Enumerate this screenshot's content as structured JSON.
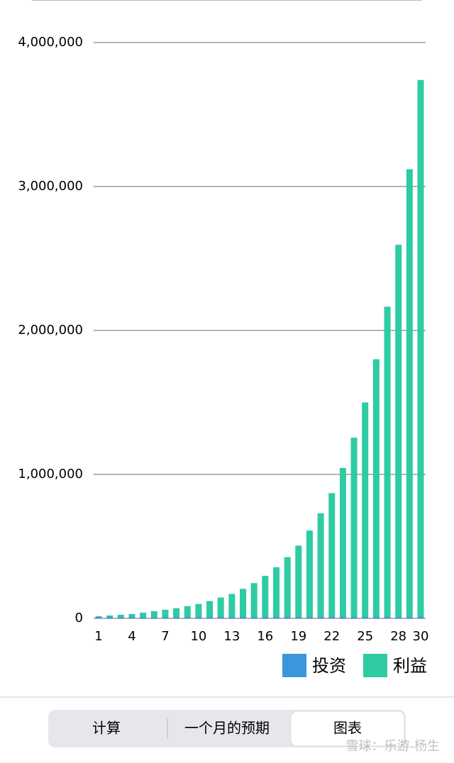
{
  "chart_data": {
    "type": "bar",
    "stacked": true,
    "categories": [
      "1",
      null,
      null,
      "4",
      null,
      null,
      "7",
      null,
      null,
      "10",
      null,
      null,
      "13",
      null,
      null,
      "16",
      null,
      null,
      "19",
      null,
      null,
      "22",
      null,
      null,
      "25",
      null,
      null,
      "28",
      null,
      "30"
    ],
    "series": [
      {
        "name": "投资",
        "color": "#3a97dc",
        "values": [
          10000,
          10000,
          10000,
          10000,
          10000,
          10000,
          10000,
          10000,
          10000,
          10000,
          10000,
          10000,
          10000,
          10000,
          10000,
          10000,
          10000,
          10000,
          10000,
          10000,
          10000,
          10000,
          10000,
          10000,
          10000,
          10000,
          10000,
          10000,
          10000,
          10000
        ]
      },
      {
        "name": "利益",
        "color": "#2ecba4",
        "values": [
          5000,
          10000,
          15000,
          20000,
          30000,
          40000,
          50000,
          60000,
          75000,
          90000,
          110000,
          135000,
          160000,
          195000,
          235000,
          285000,
          345000,
          415000,
          495000,
          600000,
          720000,
          860000,
          1035000,
          1245000,
          1490000,
          1790000,
          2155000,
          2585000,
          3110000,
          3730000
        ]
      }
    ],
    "ylim": [
      0,
      4000000
    ],
    "yticks": [
      0,
      {
        "value": 1000000,
        "label": "1,000,000"
      },
      {
        "value": 2000000,
        "label": "2,000,000"
      },
      {
        "value": 3000000,
        "label": "3,000,000"
      },
      {
        "value": 4000000,
        "label": "4,000,000"
      }
    ],
    "grid": true,
    "legend": "bottom-right"
  },
  "tabs": [
    "计算",
    "一个月的预期",
    "图表"
  ],
  "selected_tab": 2,
  "watermark": "雪球：乐游-杨生"
}
